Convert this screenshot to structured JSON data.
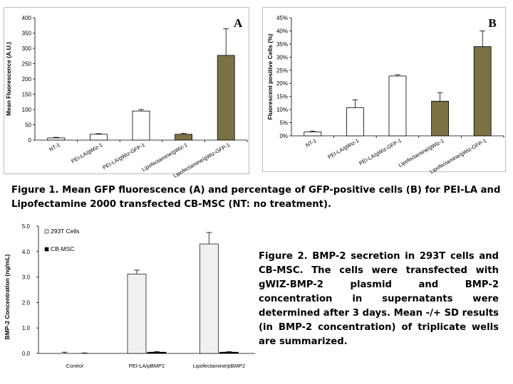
{
  "chart_data": [
    {
      "type": "bar",
      "panel_letter": "A",
      "title": "",
      "xlabel": "",
      "ylabel": "Mean Fluorescence (A.U.)",
      "categories": [
        "NT-1",
        "PEI-LA/gWiz-1",
        "PEI-LA/gWiz-GFP-1",
        "Lipofectamine/gWiz-1",
        "Lipofectamine/gWiz-GFP-1"
      ],
      "values": [
        7,
        19,
        95,
        19,
        277
      ],
      "errors": [
        2,
        2,
        5,
        3,
        87
      ],
      "bar_colors": [
        "#ffffff",
        "#ffffff",
        "#ffffff",
        "#7c7142",
        "#7c7142"
      ],
      "ylim": [
        0,
        400
      ],
      "yticks": [
        0,
        50,
        100,
        150,
        200,
        250,
        300,
        350,
        400
      ],
      "ytick_labels": [
        "0",
        "50",
        "100",
        "150",
        "200",
        "250",
        "300",
        "350",
        "400"
      ],
      "grid": false
    },
    {
      "type": "bar",
      "panel_letter": "B",
      "title": "",
      "xlabel": "",
      "ylabel": "Fluorescent positive Cells (%)",
      "categories": [
        "NT-1",
        "PEI-LA/gWiz-1",
        "PEI-LA/gWiz-GFP-1",
        "Lipofectamine/gWiz-1",
        "Lipofectamine/gWiz-GFP-1"
      ],
      "values": [
        1.5,
        10.7,
        22.8,
        13.2,
        34
      ],
      "errors": [
        0.3,
        3,
        0.5,
        3.3,
        6
      ],
      "bar_colors": [
        "#ffffff",
        "#ffffff",
        "#ffffff",
        "#7c7142",
        "#7c7142"
      ],
      "ylim": [
        0,
        45
      ],
      "yticks": [
        0,
        5,
        10,
        15,
        20,
        25,
        30,
        35,
        40,
        45
      ],
      "ytick_labels": [
        "0%",
        "5%",
        "10%",
        "15%",
        "20%",
        "25%",
        "30%",
        "35%",
        "40%",
        "45%"
      ],
      "grid": false
    },
    {
      "type": "bar",
      "title": "",
      "xlabel": "",
      "ylabel": "BMP-2 Concentration (ng/mL)",
      "categories": [
        "Control",
        "PEI-LA/pBMP2",
        "Lipofectamine/pBMP2"
      ],
      "series": [
        {
          "name": "293T Cells",
          "values": [
            0,
            3.12,
            4.3
          ],
          "errors": [
            0.05,
            0.15,
            0.45
          ],
          "color": "#f0f0f0"
        },
        {
          "name": "CB-MSC",
          "values": [
            0,
            0.05,
            0.05
          ],
          "errors": [
            0.02,
            0.02,
            0.02
          ],
          "color": "#000000"
        }
      ],
      "ylim": [
        0,
        5
      ],
      "yticks": [
        0,
        1,
        2,
        3,
        4,
        5
      ],
      "ytick_labels": [
        "0.0",
        "1.0",
        "2.0",
        "3.0",
        "4.0",
        "5.0"
      ],
      "legend_position": "top-left",
      "grid": false
    }
  ],
  "captions": {
    "fig1": "Figure 1. Mean GFP fluorescence (A) and percentage of GFP-positive cells (B) for PEI-LA and Lipofectamine 2000 transfected CB-MSC (NT: no treatment).",
    "fig2": "Figure 2. BMP-2 secretion in 293T cells and CB-MSC. The cells were transfected with gWIZ-BMP-2 plasmid and BMP-2 concentration in supernatants were determined after 3 days. Mean -/+ SD results (in BMP-2 concentration) of triplicate wells are summarized."
  }
}
